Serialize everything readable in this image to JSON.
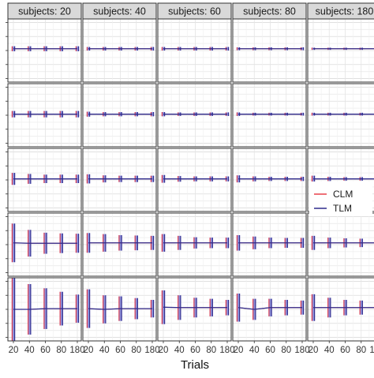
{
  "chart_data": {
    "type": "line",
    "facet_cols": [
      "subjects: 20",
      "subjects: 40",
      "subjects: 60",
      "subjects: 80",
      "subjects: 180"
    ],
    "facet_rows": 5,
    "x": [
      20,
      40,
      60,
      80,
      180
    ],
    "x_tick_labels": [
      "20",
      "40",
      "60",
      "80",
      "180"
    ],
    "xlabel": "Trials",
    "ylabel": "",
    "ylim": [
      -0.9,
      0.9
    ],
    "grid": true,
    "legend_position": "right",
    "series": [
      {
        "name": "CLM",
        "color": "#e8404a"
      },
      {
        "name": "TLM",
        "color": "#2e2b8c"
      }
    ],
    "bar_color": "#8f8fd6",
    "panels": [
      [
        {
          "y": [
            0.05,
            0.05,
            0.05,
            0.05,
            0.05
          ],
          "half_range": [
            0.07,
            0.07,
            0.07,
            0.07,
            0.07
          ]
        },
        {
          "y": [
            0.05,
            0.05,
            0.05,
            0.05,
            0.05
          ],
          "half_range": [
            0.05,
            0.05,
            0.05,
            0.05,
            0.05
          ]
        },
        {
          "y": [
            0.05,
            0.05,
            0.05,
            0.05,
            0.05
          ],
          "half_range": [
            0.05,
            0.05,
            0.05,
            0.05,
            0.05
          ]
        },
        {
          "y": [
            0.05,
            0.05,
            0.05,
            0.05,
            0.05
          ],
          "half_range": [
            0.04,
            0.04,
            0.04,
            0.04,
            0.04
          ]
        },
        {
          "y": [
            0.05,
            0.05,
            0.05,
            0.05,
            0.05
          ],
          "half_range": [
            0.03,
            0.03,
            0.03,
            0.03,
            0.03
          ]
        }
      ],
      [
        {
          "y": [
            0.03,
            0.03,
            0.03,
            0.03,
            0.03
          ],
          "half_range": [
            0.09,
            0.09,
            0.09,
            0.09,
            0.09
          ]
        },
        {
          "y": [
            0.03,
            0.03,
            0.03,
            0.03,
            0.03
          ],
          "half_range": [
            0.07,
            0.06,
            0.06,
            0.06,
            0.06
          ]
        },
        {
          "y": [
            0.03,
            0.03,
            0.03,
            0.03,
            0.03
          ],
          "half_range": [
            0.06,
            0.05,
            0.05,
            0.05,
            0.05
          ]
        },
        {
          "y": [
            0.03,
            0.03,
            0.03,
            0.03,
            0.03
          ],
          "half_range": [
            0.05,
            0.04,
            0.04,
            0.04,
            0.04
          ]
        },
        {
          "y": [
            0.03,
            0.03,
            0.03,
            0.03,
            0.03
          ],
          "half_range": [
            0.04,
            0.04,
            0.04,
            0.04,
            0.04
          ]
        }
      ],
      [
        {
          "y": [
            0.03,
            0.03,
            0.03,
            0.03,
            0.03
          ],
          "half_range": [
            0.17,
            0.14,
            0.12,
            0.12,
            0.12
          ]
        },
        {
          "y": [
            0.03,
            0.03,
            0.03,
            0.03,
            0.03
          ],
          "half_range": [
            0.13,
            0.1,
            0.09,
            0.09,
            0.09
          ]
        },
        {
          "y": [
            0.03,
            0.03,
            0.03,
            0.03,
            0.03
          ],
          "half_range": [
            0.11,
            0.08,
            0.07,
            0.07,
            0.07
          ]
        },
        {
          "y": [
            0.03,
            0.03,
            0.03,
            0.03,
            0.03
          ],
          "half_range": [
            0.1,
            0.07,
            0.06,
            0.06,
            0.06
          ]
        },
        {
          "y": [
            0.03,
            0.03,
            0.03,
            0.03,
            0.03
          ],
          "half_range": [
            0.09,
            0.06,
            0.05,
            0.05,
            0.05
          ]
        }
      ],
      [
        {
          "y": [
            0.05,
            0.04,
            0.04,
            0.04,
            0.04
          ],
          "half_range": [
            0.55,
            0.38,
            0.3,
            0.28,
            0.27
          ]
        },
        {
          "y": [
            0.05,
            0.05,
            0.05,
            0.05,
            0.05
          ],
          "half_range": [
            0.28,
            0.25,
            0.22,
            0.21,
            0.2
          ]
        },
        {
          "y": [
            0.05,
            0.05,
            0.05,
            0.05,
            0.05
          ],
          "half_range": [
            0.25,
            0.2,
            0.16,
            0.15,
            0.15
          ]
        },
        {
          "y": [
            0.05,
            0.05,
            0.05,
            0.05,
            0.05
          ],
          "half_range": [
            0.22,
            0.18,
            0.15,
            0.14,
            0.14
          ]
        },
        {
          "y": [
            0.05,
            0.05,
            0.05,
            0.05,
            0.05
          ],
          "half_range": [
            0.2,
            0.15,
            0.13,
            0.12,
            0.12
          ]
        }
      ],
      [
        {
          "y": [
            0.0,
            0.0,
            0.02,
            0.02,
            0.02
          ],
          "half_range": [
            0.9,
            0.72,
            0.58,
            0.48,
            0.4
          ]
        },
        {
          "y": [
            0.02,
            0.0,
            0.02,
            0.02,
            0.02
          ],
          "half_range": [
            0.55,
            0.4,
            0.35,
            0.3,
            0.25
          ]
        },
        {
          "y": [
            0.06,
            0.05,
            0.05,
            0.05,
            0.05
          ],
          "half_range": [
            0.48,
            0.35,
            0.28,
            0.25,
            0.22
          ]
        },
        {
          "y": [
            0.05,
            0.0,
            0.05,
            0.05,
            0.05
          ],
          "half_range": [
            0.4,
            0.3,
            0.25,
            0.22,
            0.2
          ]
        },
        {
          "y": [
            0.05,
            0.05,
            0.05,
            0.05,
            0.05
          ],
          "half_range": [
            0.38,
            0.28,
            0.22,
            0.2,
            0.18
          ]
        }
      ]
    ]
  }
}
